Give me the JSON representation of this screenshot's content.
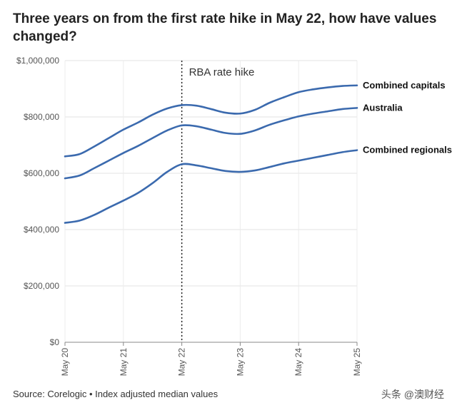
{
  "title": "Three years on from the first rate hike in May 22, how have values changed?",
  "source": "Source: Corelogic • Index adjusted median values",
  "watermark": "头条 @澳财经",
  "chart_data": {
    "type": "line",
    "title": "Three years on from the first rate hike in May 22, how have values changed?",
    "categories": [
      "May 20",
      "May 21",
      "May 22",
      "May 23",
      "May 24",
      "May 25"
    ],
    "x": [
      "May 20",
      "Aug 20",
      "Nov 20",
      "Feb 21",
      "May 21",
      "Aug 21",
      "Nov 21",
      "Feb 22",
      "May 22",
      "Aug 22",
      "Nov 22",
      "Feb 23",
      "May 23",
      "Aug 23",
      "Nov 23",
      "Feb 24",
      "May 24",
      "Aug 24",
      "Nov 24",
      "Feb 25",
      "May 25"
    ],
    "series": [
      {
        "name": "Combined capitals",
        "color": "#3b6aae",
        "values": [
          660000,
          668000,
          695000,
          725000,
          755000,
          780000,
          808000,
          830000,
          842000,
          840000,
          828000,
          815000,
          812000,
          825000,
          850000,
          870000,
          888000,
          898000,
          905000,
          910000,
          912000
        ]
      },
      {
        "name": "Australia",
        "color": "#3b6aae",
        "values": [
          582000,
          592000,
          618000,
          645000,
          672000,
          697000,
          725000,
          752000,
          770000,
          767000,
          755000,
          743000,
          740000,
          752000,
          772000,
          788000,
          802000,
          812000,
          820000,
          828000,
          832000
        ]
      },
      {
        "name": "Combined regionals",
        "color": "#3b6aae",
        "values": [
          424000,
          432000,
          452000,
          478000,
          503000,
          530000,
          565000,
          605000,
          632000,
          628000,
          618000,
          608000,
          605000,
          610000,
          622000,
          635000,
          645000,
          655000,
          665000,
          675000,
          682000
        ]
      }
    ],
    "ylim": [
      0,
      1000000
    ],
    "yticks": [
      0,
      200000,
      400000,
      600000,
      800000,
      1000000
    ],
    "ytick_labels": [
      "$0",
      "$200,000",
      "$400,000",
      "$600,000",
      "$800,000",
      "$1,000,000"
    ],
    "grid": true,
    "annotations": [
      {
        "x": "May 22",
        "label": "RBA rate hike",
        "style": "dotted-vertical-line"
      }
    ]
  }
}
